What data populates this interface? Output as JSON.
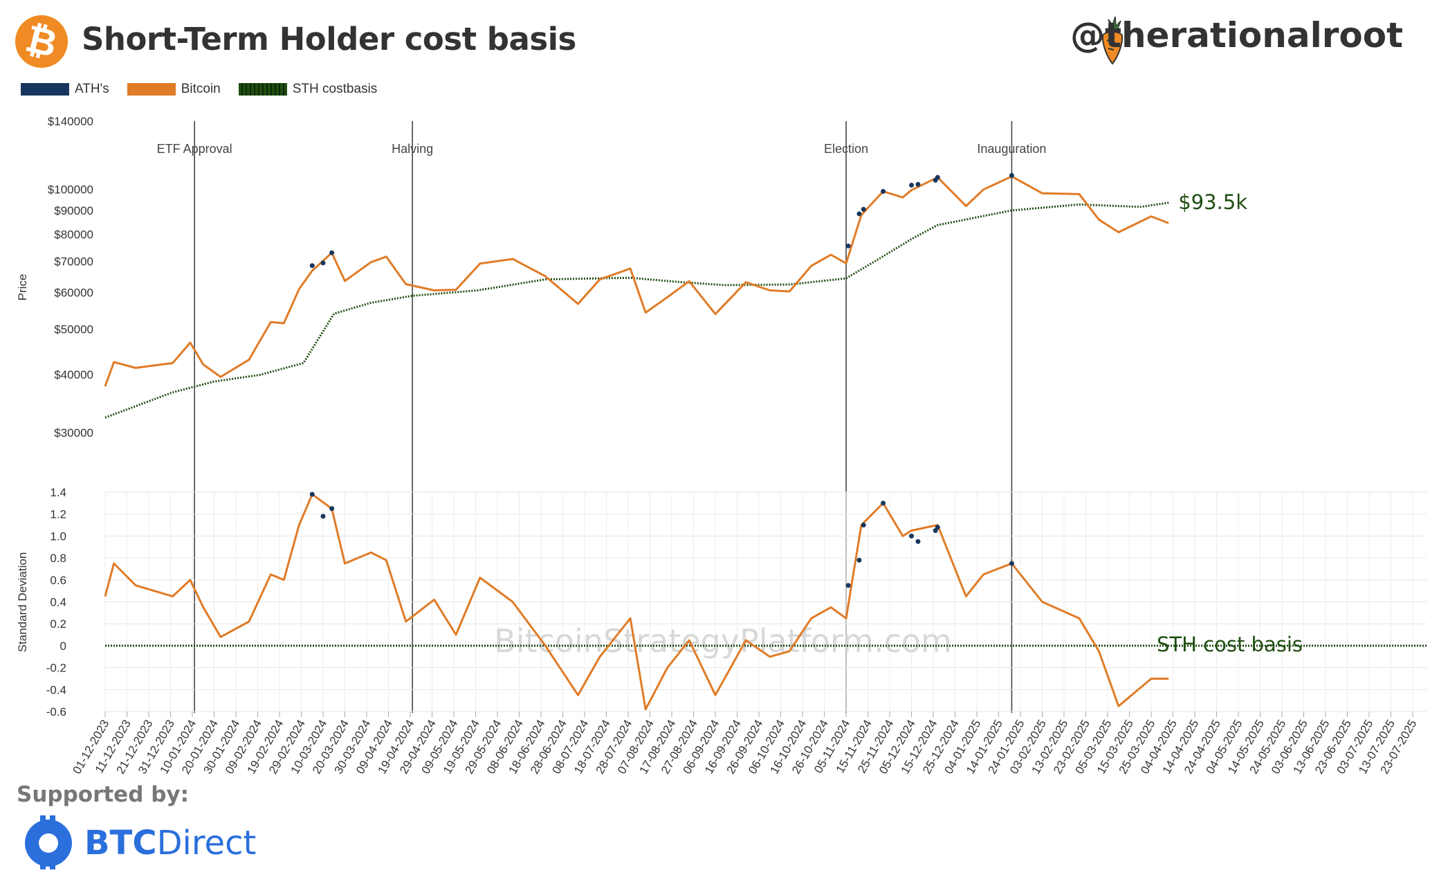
{
  "header": {
    "title": "Short-Term Holder cost basis",
    "handle": "@therationalroot",
    "bitcoin_symbol": "₿"
  },
  "legend": [
    {
      "label": "ATH's",
      "color": "#17375e"
    },
    {
      "label": "Bitcoin",
      "color": "#e07b26"
    },
    {
      "label": "STH costbasis",
      "color": "#1f4d12"
    }
  ],
  "footer": {
    "supported_by": "Supported by:",
    "brand_bold": "BTC",
    "brand_rest": "Direct"
  },
  "watermark": "BitcoinStrategyPlatform.com",
  "chart_data": [
    {
      "type": "line",
      "title": "Short-Term Holder cost basis",
      "ylabel": "Price",
      "yscale": "log",
      "ylim": [
        28000,
        140000
      ],
      "yticks": [
        30000,
        40000,
        50000,
        60000,
        70000,
        80000,
        90000,
        100000,
        140000
      ],
      "ytick_labels": [
        "$30000",
        "$40000",
        "$50000",
        "$60000",
        "$70000",
        "$80000",
        "$90000",
        "$100000",
        "$140000"
      ],
      "events": [
        {
          "label": "ETF Approval",
          "date": "2024-01-11"
        },
        {
          "label": "Halving",
          "date": "2024-04-20"
        },
        {
          "label": "Election",
          "date": "2024-11-05"
        },
        {
          "label": "Inauguration",
          "date": "2025-01-20"
        }
      ],
      "annotation": "$93.5k",
      "series": [
        {
          "name": "Bitcoin",
          "x": [
            "2023-12-01",
            "2023-12-05",
            "2023-12-15",
            "2024-01-01",
            "2024-01-09",
            "2024-01-15",
            "2024-01-23",
            "2024-02-05",
            "2024-02-15",
            "2024-02-21",
            "2024-02-28",
            "2024-03-05",
            "2024-03-14",
            "2024-03-20",
            "2024-04-01",
            "2024-04-08",
            "2024-04-17",
            "2024-04-30",
            "2024-05-10",
            "2024-05-21",
            "2024-06-05",
            "2024-06-20",
            "2024-07-05",
            "2024-07-15",
            "2024-07-29",
            "2024-08-05",
            "2024-08-15",
            "2024-08-25",
            "2024-09-06",
            "2024-09-20",
            "2024-10-01",
            "2024-10-10",
            "2024-10-20",
            "2024-10-29",
            "2024-11-05",
            "2024-11-12",
            "2024-11-22",
            "2024-12-01",
            "2024-12-05",
            "2024-12-17",
            "2024-12-30",
            "2025-01-07",
            "2025-01-20",
            "2025-02-03",
            "2025-02-20",
            "2025-03-01",
            "2025-03-10",
            "2025-03-25",
            "2025-04-02"
          ],
          "values": [
            37700,
            42500,
            41300,
            42300,
            46800,
            42000,
            39500,
            43000,
            51800,
            51500,
            61000,
            66800,
            73000,
            63500,
            69700,
            71600,
            62500,
            60600,
            60800,
            69200,
            70800,
            65000,
            56700,
            64000,
            67500,
            54300,
            58600,
            63400,
            53900,
            63100,
            60600,
            60300,
            68400,
            72300,
            69300,
            88000,
            98900,
            96000,
            99500,
            106000,
            92000,
            99800,
            106500,
            98000,
            97600,
            86000,
            80800,
            87400,
            84500
          ]
        },
        {
          "name": "STH costbasis",
          "x": [
            "2023-12-01",
            "2024-01-01",
            "2024-01-20",
            "2024-02-10",
            "2024-03-01",
            "2024-03-15",
            "2024-04-01",
            "2024-04-20",
            "2024-05-20",
            "2024-06-20",
            "2024-07-29",
            "2024-08-20",
            "2024-09-10",
            "2024-10-10",
            "2024-11-05",
            "2024-11-20",
            "2024-12-05",
            "2024-12-17",
            "2025-01-20",
            "2025-02-20",
            "2025-03-20",
            "2025-04-02"
          ],
          "values": [
            32300,
            36600,
            38600,
            39900,
            42300,
            54000,
            57000,
            59000,
            60600,
            64000,
            64500,
            63200,
            62200,
            62400,
            64300,
            70800,
            78100,
            83700,
            90000,
            92700,
            91600,
            93500
          ]
        }
      ],
      "ath_series": {
        "name": "ATH's",
        "x": [
          "2024-03-05",
          "2024-03-10",
          "2024-03-14",
          "2024-11-06",
          "2024-11-11",
          "2024-11-13",
          "2024-11-22",
          "2024-12-05",
          "2024-12-08",
          "2024-12-16",
          "2024-12-17",
          "2025-01-20"
        ],
        "values": [
          68500,
          69400,
          73000,
          75500,
          88500,
          90500,
          98900,
          102000,
          102400,
          104500,
          106000,
          107000
        ]
      }
    },
    {
      "type": "line",
      "ylabel": "Standard Deviation",
      "ylim": [
        -0.6,
        1.4
      ],
      "yticks": [
        -0.6,
        -0.4,
        -0.2,
        0,
        0.2,
        0.4,
        0.6,
        0.8,
        1.0,
        1.2,
        1.4
      ],
      "ytick_labels": [
        "-0.6",
        "-0.4",
        "-0.2",
        "0",
        "0.2",
        "0.4",
        "0.6",
        "0.8",
        "1.0",
        "1.2",
        "1.4"
      ],
      "reference_line": {
        "value": 0,
        "label": "STH cost basis"
      },
      "series": [
        {
          "name": "Bitcoin",
          "x": [
            "2023-12-01",
            "2023-12-05",
            "2023-12-15",
            "2024-01-01",
            "2024-01-09",
            "2024-01-15",
            "2024-01-23",
            "2024-02-05",
            "2024-02-15",
            "2024-02-21",
            "2024-02-28",
            "2024-03-05",
            "2024-03-14",
            "2024-03-20",
            "2024-04-01",
            "2024-04-08",
            "2024-04-17",
            "2024-04-30",
            "2024-05-10",
            "2024-05-21",
            "2024-06-05",
            "2024-06-20",
            "2024-07-05",
            "2024-07-15",
            "2024-07-29",
            "2024-08-05",
            "2024-08-15",
            "2024-08-25",
            "2024-09-06",
            "2024-09-20",
            "2024-10-01",
            "2024-10-10",
            "2024-10-20",
            "2024-10-29",
            "2024-11-05",
            "2024-11-12",
            "2024-11-22",
            "2024-12-01",
            "2024-12-05",
            "2024-12-17",
            "2024-12-30",
            "2025-01-07",
            "2025-01-20",
            "2025-02-03",
            "2025-02-20",
            "2025-03-01",
            "2025-03-10",
            "2025-03-25",
            "2025-04-02"
          ],
          "values": [
            0.45,
            0.75,
            0.55,
            0.45,
            0.6,
            0.35,
            0.08,
            0.22,
            0.65,
            0.6,
            1.1,
            1.38,
            1.25,
            0.75,
            0.85,
            0.78,
            0.22,
            0.42,
            0.1,
            0.62,
            0.4,
            0.0,
            -0.45,
            -0.1,
            0.25,
            -0.58,
            -0.2,
            0.05,
            -0.45,
            0.05,
            -0.1,
            -0.05,
            0.25,
            0.35,
            0.25,
            1.1,
            1.3,
            1.0,
            1.05,
            1.1,
            0.45,
            0.65,
            0.75,
            0.4,
            0.25,
            -0.05,
            -0.55,
            -0.3,
            -0.3
          ]
        }
      ],
      "ath_series": {
        "name": "ATH's",
        "x": [
          "2024-03-05",
          "2024-03-10",
          "2024-03-14",
          "2024-11-06",
          "2024-11-11",
          "2024-11-13",
          "2024-11-22",
          "2024-12-05",
          "2024-12-08",
          "2024-12-16",
          "2024-12-17",
          "2025-01-20"
        ],
        "values": [
          1.38,
          1.18,
          1.25,
          0.55,
          0.78,
          1.1,
          1.3,
          1.0,
          0.95,
          1.05,
          1.08,
          0.75
        ]
      }
    }
  ],
  "x_axis": {
    "ticks": [
      "01-12-2023",
      "11-12-2023",
      "21-12-2023",
      "31-12-2023",
      "10-01-2024",
      "20-01-2024",
      "30-01-2024",
      "09-02-2024",
      "19-02-2024",
      "29-02-2024",
      "10-03-2024",
      "20-03-2024",
      "30-03-2024",
      "09-04-2024",
      "19-04-2024",
      "29-04-2024",
      "09-05-2024",
      "19-05-2024",
      "29-05-2024",
      "08-06-2024",
      "18-06-2024",
      "28-06-2024",
      "08-07-2024",
      "18-07-2024",
      "28-07-2024",
      "07-08-2024",
      "17-08-2024",
      "27-08-2024",
      "06-09-2024",
      "16-09-2024",
      "26-09-2024",
      "06-10-2024",
      "16-10-2024",
      "26-10-2024",
      "05-11-2024",
      "15-11-2024",
      "25-11-2024",
      "05-12-2024",
      "15-12-2024",
      "25-12-2024",
      "04-01-2025",
      "14-01-2025",
      "24-01-2025",
      "03-02-2025",
      "13-02-2025",
      "23-02-2025",
      "05-03-2025",
      "15-03-2025",
      "25-03-2025",
      "04-04-2025",
      "14-04-2025",
      "24-04-2025",
      "04-05-2025",
      "14-05-2025",
      "24-05-2025",
      "03-06-2025",
      "13-06-2025",
      "23-06-2025",
      "03-07-2025",
      "13-07-2025",
      "23-07-2025"
    ]
  }
}
